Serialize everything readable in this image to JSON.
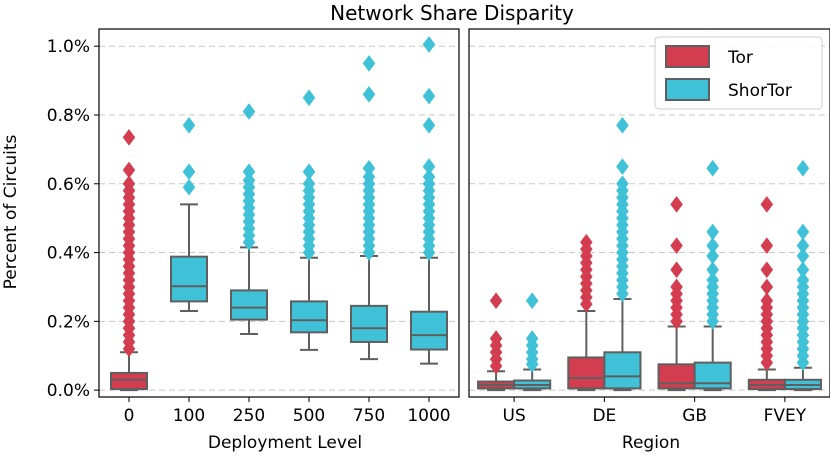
{
  "chart_data": [
    {
      "panel": "left",
      "type": "box",
      "title": "Network Share Disparity",
      "xlabel": "Deployment Level",
      "ylabel": "Percent of Circuits",
      "ylim": [
        -0.02,
        1.05
      ],
      "yticks": [
        0.0,
        0.2,
        0.4,
        0.6,
        0.8,
        1.0
      ],
      "ytick_labels": [
        "0.0%",
        "0.2%",
        "0.4%",
        "0.6%",
        "0.8%",
        "1.0%"
      ],
      "grid": "horizontal dashed",
      "categories": [
        "0",
        "100",
        "250",
        "500",
        "750",
        "1000"
      ],
      "boxes": [
        {
          "category": "0",
          "series": "Tor",
          "whislo": 0.0,
          "q1": 0.003,
          "med": 0.03,
          "q3": 0.05,
          "whishi": 0.11,
          "fliers": [
            0.12,
            0.14,
            0.16,
            0.18,
            0.2,
            0.22,
            0.24,
            0.26,
            0.28,
            0.3,
            0.32,
            0.34,
            0.36,
            0.38,
            0.4,
            0.42,
            0.44,
            0.46,
            0.48,
            0.5,
            0.52,
            0.54,
            0.56,
            0.58,
            0.6,
            0.64,
            0.735
          ]
        },
        {
          "category": "100",
          "series": "ShorTor",
          "whislo": 0.23,
          "q1": 0.258,
          "med": 0.302,
          "q3": 0.388,
          "whishi": 0.54,
          "fliers": [
            0.59,
            0.635,
            0.77
          ]
        },
        {
          "category": "250",
          "series": "ShorTor",
          "whislo": 0.163,
          "q1": 0.205,
          "med": 0.24,
          "q3": 0.29,
          "whishi": 0.415,
          "fliers": [
            0.43,
            0.45,
            0.47,
            0.49,
            0.51,
            0.53,
            0.55,
            0.57,
            0.59,
            0.61,
            0.635,
            0.81
          ]
        },
        {
          "category": "500",
          "series": "ShorTor",
          "whislo": 0.117,
          "q1": 0.168,
          "med": 0.203,
          "q3": 0.258,
          "whishi": 0.385,
          "fliers": [
            0.4,
            0.42,
            0.44,
            0.46,
            0.48,
            0.5,
            0.52,
            0.54,
            0.56,
            0.58,
            0.6,
            0.635,
            0.85
          ]
        },
        {
          "category": "750",
          "series": "ShorTor",
          "whislo": 0.09,
          "q1": 0.14,
          "med": 0.18,
          "q3": 0.245,
          "whishi": 0.39,
          "fliers": [
            0.4,
            0.42,
            0.44,
            0.46,
            0.48,
            0.5,
            0.52,
            0.54,
            0.56,
            0.58,
            0.6,
            0.62,
            0.645,
            0.86,
            0.95
          ]
        },
        {
          "category": "1000",
          "series": "ShorTor",
          "whislo": 0.077,
          "q1": 0.118,
          "med": 0.16,
          "q3": 0.228,
          "whishi": 0.385,
          "fliers": [
            0.4,
            0.42,
            0.44,
            0.46,
            0.48,
            0.5,
            0.52,
            0.54,
            0.56,
            0.58,
            0.6,
            0.62,
            0.65,
            0.77,
            0.855,
            1.005
          ]
        }
      ]
    },
    {
      "panel": "right",
      "type": "box",
      "xlabel": "Region",
      "ylim": [
        -0.02,
        1.05
      ],
      "categories": [
        "US",
        "DE",
        "GB",
        "FVEY"
      ],
      "legend": {
        "placement": "top-right",
        "entries": [
          "Tor",
          "ShorTor"
        ]
      },
      "series": [
        {
          "name": "Tor",
          "color": "#d43d4f",
          "boxes": [
            {
              "category": "US",
              "whislo": 0.0,
              "q1": 0.005,
              "med": 0.015,
              "q3": 0.025,
              "whishi": 0.055,
              "fliers": [
                0.07,
                0.09,
                0.11,
                0.13,
                0.15,
                0.26
              ]
            },
            {
              "category": "DE",
              "whislo": 0.0,
              "q1": 0.005,
              "med": 0.035,
              "q3": 0.095,
              "whishi": 0.23,
              "fliers": [
                0.25,
                0.27,
                0.29,
                0.31,
                0.33,
                0.35,
                0.37,
                0.39,
                0.41,
                0.43
              ]
            },
            {
              "category": "GB",
              "whislo": 0.0,
              "q1": 0.005,
              "med": 0.02,
              "q3": 0.075,
              "whishi": 0.185,
              "fliers": [
                0.2,
                0.22,
                0.24,
                0.26,
                0.28,
                0.3,
                0.35,
                0.42,
                0.54
              ]
            },
            {
              "category": "FVEY",
              "whislo": 0.0,
              "q1": 0.003,
              "med": 0.015,
              "q3": 0.03,
              "whishi": 0.06,
              "fliers": [
                0.08,
                0.1,
                0.12,
                0.14,
                0.16,
                0.18,
                0.2,
                0.22,
                0.24,
                0.26,
                0.3,
                0.35,
                0.42,
                0.54
              ]
            }
          ]
        },
        {
          "name": "ShorTor",
          "color": "#3fc1d8",
          "boxes": [
            {
              "category": "US",
              "whislo": 0.0,
              "q1": 0.005,
              "med": 0.015,
              "q3": 0.028,
              "whishi": 0.06,
              "fliers": [
                0.075,
                0.09,
                0.11,
                0.13,
                0.15,
                0.26
              ]
            },
            {
              "category": "DE",
              "whislo": 0.0,
              "q1": 0.005,
              "med": 0.04,
              "q3": 0.11,
              "whishi": 0.265,
              "fliers": [
                0.28,
                0.3,
                0.32,
                0.34,
                0.36,
                0.38,
                0.4,
                0.42,
                0.44,
                0.46,
                0.48,
                0.5,
                0.52,
                0.54,
                0.56,
                0.58,
                0.6,
                0.65,
                0.77
              ]
            },
            {
              "category": "GB",
              "whislo": 0.0,
              "q1": 0.005,
              "med": 0.02,
              "q3": 0.08,
              "whishi": 0.185,
              "fliers": [
                0.2,
                0.22,
                0.24,
                0.26,
                0.28,
                0.3,
                0.32,
                0.35,
                0.39,
                0.42,
                0.46,
                0.645
              ]
            },
            {
              "category": "FVEY",
              "whislo": 0.0,
              "q1": 0.003,
              "med": 0.015,
              "q3": 0.03,
              "whishi": 0.065,
              "fliers": [
                0.08,
                0.1,
                0.12,
                0.14,
                0.16,
                0.18,
                0.2,
                0.22,
                0.24,
                0.26,
                0.28,
                0.3,
                0.32,
                0.35,
                0.39,
                0.42,
                0.46,
                0.645
              ]
            }
          ]
        }
      ]
    }
  ],
  "colors": {
    "tor": "#d43d4f",
    "shortor": "#3fc1d8",
    "edge": "#5f5f5f",
    "grid": "#c8c8c8"
  }
}
